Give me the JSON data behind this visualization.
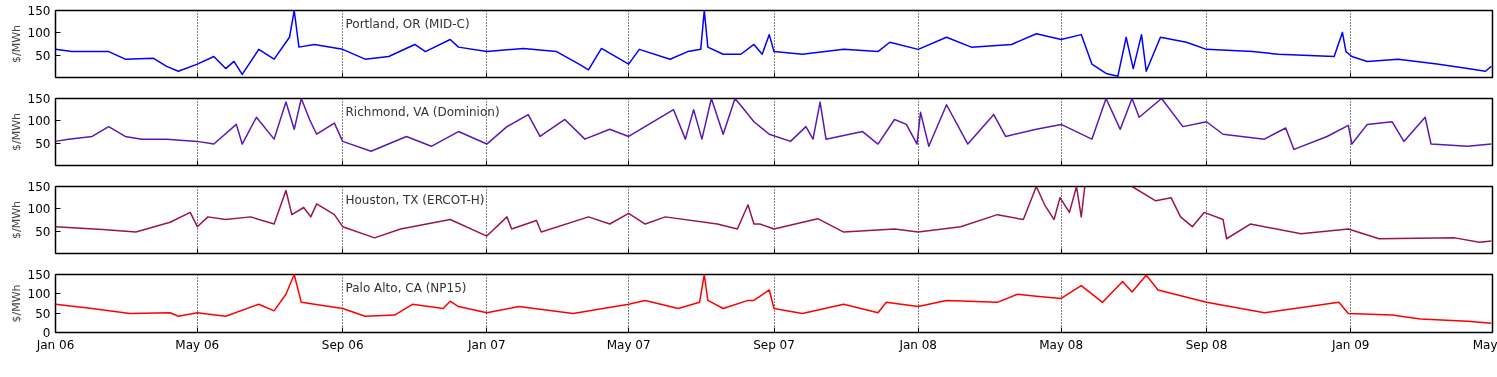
{
  "chart_data": [
    {
      "type": "line",
      "ylabel": "$/MWh",
      "xlim": [
        "2006-01-01",
        "2009-05-01"
      ],
      "ylim": [
        0,
        150
      ],
      "yticks": [
        50,
        100,
        150
      ],
      "grid": "x",
      "tick_labels": "y",
      "xticks": [
        {
          "value": "2006-01-01",
          "label": null
        },
        {
          "value": "2006-05-01",
          "label": null
        },
        {
          "value": "2006-09-01",
          "label": null
        },
        {
          "value": "2007-01-01",
          "label": null
        },
        {
          "value": "2007-05-01",
          "label": null
        },
        {
          "value": "2007-09-01",
          "label": null
        },
        {
          "value": "2008-01-01",
          "label": null
        },
        {
          "value": "2008-05-01",
          "label": null
        },
        {
          "value": "2008-09-01",
          "label": null
        },
        {
          "value": "2009-01-01",
          "label": null
        },
        {
          "value": "2009-05-01",
          "label": null
        }
      ],
      "x": [
        "2006-01-01",
        "2006-01-15",
        "2006-02-15",
        "2006-03-01",
        "2006-03-25",
        "2006-04-05",
        "2006-04-15",
        "2006-05-01",
        "2006-05-15",
        "2006-05-25",
        "2006-06-01",
        "2006-06-08",
        "2006-06-22",
        "2006-07-05",
        "2006-07-18",
        "2006-07-22",
        "2006-07-26",
        "2006-08-08",
        "2006-09-01",
        "2006-09-20",
        "2006-10-10",
        "2006-11-01",
        "2006-11-10",
        "2006-12-01",
        "2006-12-08",
        "2007-01-01",
        "2007-02-01",
        "2007-03-01",
        "2007-03-20",
        "2007-03-28",
        "2007-04-08",
        "2007-05-01",
        "2007-05-10",
        "2007-06-05",
        "2007-06-20",
        "2007-07-01",
        "2007-07-04",
        "2007-07-07",
        "2007-07-20",
        "2007-08-04",
        "2007-08-15",
        "2007-08-22",
        "2007-08-28",
        "2007-09-01",
        "2007-09-25",
        "2007-10-30",
        "2007-11-28",
        "2007-12-08",
        "2008-01-01",
        "2008-01-25",
        "2008-02-15",
        "2008-03-20",
        "2008-04-10",
        "2008-05-01",
        "2008-05-18",
        "2008-05-27",
        "2008-06-08",
        "2008-06-18",
        "2008-06-25",
        "2008-07-01",
        "2008-07-08",
        "2008-07-12",
        "2008-07-24",
        "2008-08-15",
        "2008-09-01",
        "2008-10-10",
        "2008-11-01",
        "2008-12-18",
        "2008-12-25",
        "2008-12-28",
        "2009-01-02",
        "2009-01-15",
        "2009-02-10",
        "2009-03-15",
        "2009-04-10",
        "2009-04-25",
        "2009-04-30"
      ],
      "series": [
        {
          "name": "Portland, OR (MID-C)",
          "color": "#0000ff",
          "values": [
            63,
            58,
            58,
            41,
            43,
            25,
            14,
            30,
            47,
            20,
            36,
            7,
            63,
            41,
            90,
            150,
            68,
            74,
            63,
            41,
            47,
            74,
            58,
            85,
            68,
            58,
            65,
            58,
            30,
            17,
            65,
            30,
            63,
            41,
            58,
            63,
            150,
            68,
            52,
            52,
            74,
            52,
            96,
            58,
            52,
            63,
            58,
            79,
            63,
            90,
            68,
            74,
            98,
            85,
            96,
            30,
            9,
            3,
            90,
            20,
            96,
            14,
            90,
            79,
            63,
            58,
            52,
            47,
            101,
            58,
            47,
            36,
            41,
            30,
            20,
            14,
            25
          ]
        }
      ]
    },
    {
      "type": "line",
      "ylabel": "$/MWh",
      "xlim": [
        "2006-01-01",
        "2009-05-01"
      ],
      "ylim": [
        0,
        150
      ],
      "yticks": [
        50,
        100,
        150
      ],
      "grid": "x",
      "tick_labels": "y",
      "xticks": [
        {
          "value": "2006-01-01",
          "label": null
        },
        {
          "value": "2006-05-01",
          "label": null
        },
        {
          "value": "2006-09-01",
          "label": null
        },
        {
          "value": "2007-01-01",
          "label": null
        },
        {
          "value": "2007-05-01",
          "label": null
        },
        {
          "value": "2007-09-01",
          "label": null
        },
        {
          "value": "2008-01-01",
          "label": null
        },
        {
          "value": "2008-05-01",
          "label": null
        },
        {
          "value": "2008-09-01",
          "label": null
        },
        {
          "value": "2009-01-01",
          "label": null
        },
        {
          "value": "2009-05-01",
          "label": null
        }
      ],
      "x": [
        "2006-01-01",
        "2006-01-12",
        "2006-02-01",
        "2006-02-15",
        "2006-03-01",
        "2006-03-15",
        "2006-04-05",
        "2006-05-01",
        "2006-05-15",
        "2006-06-03",
        "2006-06-08",
        "2006-06-20",
        "2006-07-05",
        "2006-07-15",
        "2006-07-22",
        "2006-07-28",
        "2006-08-04",
        "2006-08-10",
        "2006-08-25",
        "2006-09-01",
        "2006-09-25",
        "2006-10-25",
        "2006-11-15",
        "2006-12-08",
        "2007-01-01",
        "2007-01-18",
        "2007-02-05",
        "2007-02-15",
        "2007-03-08",
        "2007-03-25",
        "2007-04-15",
        "2007-05-01",
        "2007-06-08",
        "2007-06-18",
        "2007-06-25",
        "2007-07-02",
        "2007-07-10",
        "2007-07-20",
        "2007-07-30",
        "2007-08-05",
        "2007-08-15",
        "2007-08-28",
        "2007-09-15",
        "2007-09-28",
        "2007-10-04",
        "2007-10-10",
        "2007-10-15",
        "2007-11-15",
        "2007-11-28",
        "2007-12-12",
        "2007-12-22",
        "2007-12-31",
        "2008-01-03",
        "2008-01-10",
        "2008-01-25",
        "2008-02-12",
        "2008-03-05",
        "2008-03-15",
        "2008-04-10",
        "2008-05-01",
        "2008-05-27",
        "2008-06-08",
        "2008-06-20",
        "2008-06-30",
        "2008-07-06",
        "2008-07-25",
        "2008-08-12",
        "2008-09-01",
        "2008-09-15",
        "2008-10-20",
        "2008-11-07",
        "2008-11-14",
        "2008-12-12",
        "2008-12-30",
        "2009-01-02",
        "2009-01-15",
        "2009-02-05",
        "2009-02-15",
        "2009-03-05",
        "2009-03-10",
        "2009-04-10",
        "2009-04-30"
      ],
      "series": [
        {
          "name": "Richmond, VA (Dominion)",
          "color": "#5b18b5",
          "values": [
            54,
            59,
            65,
            87,
            65,
            59,
            59,
            54,
            48,
            92,
            48,
            108,
            59,
            142,
            81,
            150,
            103,
            70,
            95,
            54,
            32,
            65,
            43,
            76,
            48,
            87,
            114,
            65,
            103,
            59,
            81,
            65,
            125,
            59,
            125,
            59,
            150,
            70,
            150,
            131,
            98,
            70,
            54,
            87,
            59,
            142,
            59,
            76,
            48,
            103,
            92,
            48,
            119,
            43,
            136,
            48,
            114,
            65,
            81,
            92,
            59,
            150,
            81,
            150,
            108,
            150,
            87,
            98,
            70,
            59,
            84,
            36,
            65,
            90,
            48,
            92,
            98,
            54,
            108,
            48,
            43,
            48
          ]
        }
      ]
    },
    {
      "type": "line",
      "ylabel": "$/MWh",
      "xlim": [
        "2006-01-01",
        "2009-05-01"
      ],
      "ylim": [
        0,
        150
      ],
      "yticks": [
        50,
        100,
        150
      ],
      "grid": "x",
      "tick_labels": "y",
      "xticks": [
        {
          "value": "2006-01-01",
          "label": null
        },
        {
          "value": "2006-05-01",
          "label": null
        },
        {
          "value": "2006-09-01",
          "label": null
        },
        {
          "value": "2007-01-01",
          "label": null
        },
        {
          "value": "2007-05-01",
          "label": null
        },
        {
          "value": "2007-09-01",
          "label": null
        },
        {
          "value": "2008-01-01",
          "label": null
        },
        {
          "value": "2008-05-01",
          "label": null
        },
        {
          "value": "2008-09-01",
          "label": null
        },
        {
          "value": "2009-01-01",
          "label": null
        },
        {
          "value": "2009-05-01",
          "label": null
        }
      ],
      "x": [
        "2006-01-01",
        "2006-02-10",
        "2006-03-10",
        "2006-04-08",
        "2006-04-25",
        "2006-05-01",
        "2006-05-10",
        "2006-05-25",
        "2006-06-15",
        "2006-07-05",
        "2006-07-15",
        "2006-07-20",
        "2006-07-30",
        "2006-08-05",
        "2006-08-10",
        "2006-08-25",
        "2006-09-01",
        "2006-09-28",
        "2006-10-20",
        "2006-12-01",
        "2007-01-01",
        "2007-01-18",
        "2007-01-22",
        "2007-02-12",
        "2007-02-16",
        "2007-03-28",
        "2007-04-15",
        "2007-05-01",
        "2007-05-15",
        "2007-06-01",
        "2007-07-15",
        "2007-08-01",
        "2007-08-10",
        "2007-08-15",
        "2007-08-20",
        "2007-09-01",
        "2007-10-08",
        "2007-10-30",
        "2007-12-12",
        "2008-01-01",
        "2008-02-06",
        "2008-03-08",
        "2008-03-30",
        "2008-04-10",
        "2008-04-17",
        "2008-04-25",
        "2008-04-30",
        "2008-05-08",
        "2008-05-14",
        "2008-05-18",
        "2008-05-21",
        "2008-06-10",
        "2008-06-30",
        "2008-07-20",
        "2008-08-02",
        "2008-08-10",
        "2008-08-20",
        "2008-08-30",
        "2008-09-15",
        "2008-09-18",
        "2008-10-08",
        "2008-11-20",
        "2008-12-30",
        "2009-01-25",
        "2009-03-30",
        "2009-04-20",
        "2009-04-30"
      ],
      "series": [
        {
          "name": "Houston, TX (ERCOT-H)",
          "color": "#9a1452",
          "values": [
            60,
            54,
            48,
            70,
            92,
            60,
            82,
            76,
            82,
            66,
            141,
            87,
            103,
            82,
            111,
            87,
            60,
            35,
            55,
            76,
            39,
            82,
            55,
            74,
            48,
            82,
            66,
            90,
            66,
            82,
            66,
            55,
            109,
            66,
            66,
            55,
            78,
            48,
            55,
            48,
            60,
            87,
            76,
            150,
            109,
            76,
            125,
            92,
            150,
            82,
            150,
            null,
            150,
            118,
            125,
            82,
            60,
            92,
            76,
            33,
            66,
            44,
            55,
            33,
            35,
            25,
            28
          ]
        }
      ]
    },
    {
      "type": "line",
      "ylabel": "$/MWh",
      "xlim": [
        "2006-01-01",
        "2009-05-01"
      ],
      "ylim": [
        0,
        150
      ],
      "yticks": [
        0,
        50,
        100,
        150
      ],
      "grid": "x",
      "xticks": [
        {
          "value": "2006-01-01",
          "label": "Jan 06"
        },
        {
          "value": "2006-05-01",
          "label": "May 06"
        },
        {
          "value": "2006-09-01",
          "label": "Sep 06"
        },
        {
          "value": "2007-01-01",
          "label": "Jan 07"
        },
        {
          "value": "2007-05-01",
          "label": "May 07"
        },
        {
          "value": "2007-09-01",
          "label": "Sep 07"
        },
        {
          "value": "2008-01-01",
          "label": "Jan 08"
        },
        {
          "value": "2008-05-01",
          "label": "May 08"
        },
        {
          "value": "2008-09-01",
          "label": "Sep 08"
        },
        {
          "value": "2009-01-01",
          "label": "Jan 09"
        },
        {
          "value": "2009-05-01",
          "label": "May"
        }
      ],
      "x": [
        "2006-01-01",
        "2006-02-01",
        "2006-03-05",
        "2006-04-08",
        "2006-04-15",
        "2006-05-01",
        "2006-05-25",
        "2006-06-22",
        "2006-07-05",
        "2006-07-15",
        "2006-07-22",
        "2006-07-28",
        "2006-09-01",
        "2006-09-20",
        "2006-10-15",
        "2006-10-30",
        "2006-11-25",
        "2006-12-01",
        "2006-12-08",
        "2007-01-01",
        "2007-01-28",
        "2007-03-15",
        "2007-05-01",
        "2007-05-15",
        "2007-06-12",
        "2007-06-30",
        "2007-07-04",
        "2007-07-07",
        "2007-07-20",
        "2007-08-10",
        "2007-08-15",
        "2007-08-28",
        "2007-09-01",
        "2007-09-25",
        "2007-10-30",
        "2007-11-28",
        "2007-12-05",
        "2008-01-01",
        "2008-01-25",
        "2008-03-08",
        "2008-03-25",
        "2008-04-10",
        "2008-05-01",
        "2008-05-18",
        "2008-06-05",
        "2008-06-22",
        "2008-06-30",
        "2008-07-12",
        "2008-07-22",
        "2008-09-01",
        "2008-10-20",
        "2008-12-22",
        "2008-12-30",
        "2009-02-05",
        "2009-03-01",
        "2009-04-10",
        "2009-04-30"
      ],
      "series": [
        {
          "name": "Palo Alto, CA (NP15)",
          "color": "#ff0000",
          "values": [
            73,
            62,
            49,
            51,
            42,
            51,
            42,
            73,
            56,
            99,
            150,
            78,
            62,
            42,
            45,
            73,
            62,
            81,
            67,
            51,
            67,
            49,
            73,
            83,
            62,
            78,
            150,
            83,
            62,
            83,
            83,
            110,
            62,
            49,
            73,
            51,
            78,
            67,
            83,
            78,
            99,
            94,
            88,
            121,
            78,
            132,
            105,
            148,
            110,
            78,
            51,
            78,
            49,
            45,
            35,
            29,
            24
          ]
        }
      ]
    }
  ]
}
